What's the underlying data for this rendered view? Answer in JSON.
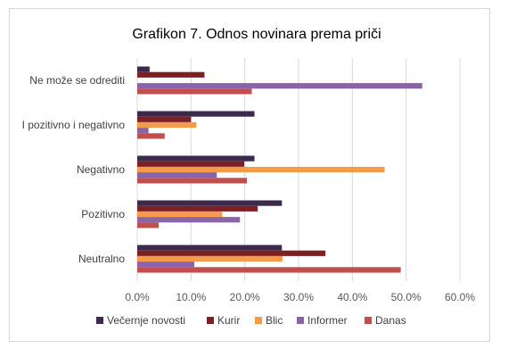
{
  "chart_data": {
    "type": "bar",
    "orientation": "horizontal",
    "title": "Grafikon 7. Odnos novinara prema priči",
    "categories": [
      "Ne može se odrediti",
      "I pozitivno i negativno",
      "Negativno",
      "Pozitivno",
      "Neutralno"
    ],
    "series": [
      {
        "name": "Večernje novosti",
        "color": "#3b2a4e",
        "values": [
          2.3,
          21.8,
          21.8,
          26.9,
          26.9
        ]
      },
      {
        "name": "Kurir",
        "color": "#7b2123",
        "values": [
          12.5,
          10.0,
          19.9,
          22.4,
          35.0
        ]
      },
      {
        "name": "Blic",
        "color": "#f39b4b",
        "values": [
          0,
          11.0,
          46.0,
          15.8,
          27.0
        ]
      },
      {
        "name": "Informer",
        "color": "#8a64a6",
        "values": [
          53.0,
          2.1,
          14.8,
          19.1,
          10.6
        ]
      },
      {
        "name": "Danas",
        "color": "#c0504d",
        "values": [
          21.3,
          5.1,
          20.4,
          4.0,
          49.0
        ]
      }
    ],
    "x_ticks": [
      "0.0%",
      "10.0%",
      "20.0%",
      "30.0%",
      "40.0%",
      "50.0%",
      "60.0%"
    ],
    "xlim": [
      0,
      60
    ],
    "grid": true,
    "legend_position": "bottom"
  }
}
